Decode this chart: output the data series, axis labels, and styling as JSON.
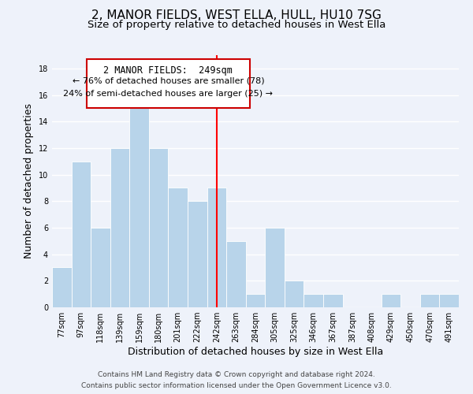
{
  "title": "2, MANOR FIELDS, WEST ELLA, HULL, HU10 7SG",
  "subtitle": "Size of property relative to detached houses in West Ella",
  "xlabel": "Distribution of detached houses by size in West Ella",
  "ylabel": "Number of detached properties",
  "bin_labels": [
    "77sqm",
    "97sqm",
    "118sqm",
    "139sqm",
    "159sqm",
    "180sqm",
    "201sqm",
    "222sqm",
    "242sqm",
    "263sqm",
    "284sqm",
    "305sqm",
    "325sqm",
    "346sqm",
    "367sqm",
    "387sqm",
    "408sqm",
    "429sqm",
    "450sqm",
    "470sqm",
    "491sqm"
  ],
  "bar_heights": [
    3,
    11,
    6,
    12,
    15,
    12,
    9,
    8,
    9,
    5,
    1,
    6,
    2,
    1,
    1,
    0,
    0,
    1,
    0,
    1,
    1
  ],
  "bar_color": "#b8d4ea",
  "bar_edge_color": "#ffffff",
  "reference_line_x": 8,
  "annotation_title": "2 MANOR FIELDS:  249sqm",
  "annotation_line1": "← 76% of detached houses are smaller (78)",
  "annotation_line2": "24% of semi-detached houses are larger (25) →",
  "annotation_box_color": "#ffffff",
  "annotation_box_edge": "#cc0000",
  "ylim": [
    0,
    19
  ],
  "yticks": [
    0,
    2,
    4,
    6,
    8,
    10,
    12,
    14,
    16,
    18
  ],
  "footer_line1": "Contains HM Land Registry data © Crown copyright and database right 2024.",
  "footer_line2": "Contains public sector information licensed under the Open Government Licence v3.0.",
  "background_color": "#eef2fa",
  "grid_color": "#ffffff",
  "title_fontsize": 11,
  "subtitle_fontsize": 9.5,
  "axis_label_fontsize": 9,
  "tick_fontsize": 7,
  "annotation_title_fontsize": 8.5,
  "annotation_text_fontsize": 8,
  "footer_fontsize": 6.5
}
